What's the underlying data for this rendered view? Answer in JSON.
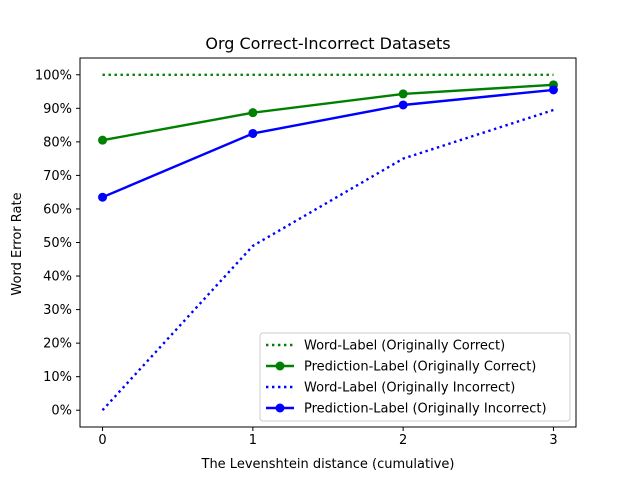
{
  "chart_data": {
    "type": "line",
    "title": "Org Correct-Incorrect Datasets",
    "xlabel": "The Levenshtein distance (cumulative)",
    "ylabel": "Word Error Rate",
    "x": [
      0,
      1,
      2,
      3
    ],
    "x_tick_labels": [
      "0",
      "1",
      "2",
      "3"
    ],
    "xlim": [
      -0.15,
      3.15
    ],
    "ylim": [
      -0.05,
      1.05
    ],
    "y_ticks": [
      0,
      0.1,
      0.2,
      0.3,
      0.4,
      0.5,
      0.6,
      0.7,
      0.8,
      0.9,
      1.0
    ],
    "y_tick_labels": [
      "0%",
      "10%",
      "20%",
      "30%",
      "40%",
      "50%",
      "60%",
      "70%",
      "80%",
      "90%",
      "100%"
    ],
    "grid": false,
    "legend_position": "lower-right",
    "series": [
      {
        "name": "Word-Label (Originally Correct)",
        "values": [
          1.0,
          1.0,
          1.0,
          1.0
        ],
        "color": "#008000",
        "style": "dotted",
        "marker": "none"
      },
      {
        "name": "Prediction-Label (Originally Correct)",
        "values": [
          0.805,
          0.887,
          0.943,
          0.97
        ],
        "color": "#008000",
        "style": "solid",
        "marker": "circle"
      },
      {
        "name": "Word-Label (Originally Incorrect)",
        "values": [
          0.0,
          0.49,
          0.75,
          0.895
        ],
        "color": "#0000ff",
        "style": "dotted",
        "marker": "none"
      },
      {
        "name": "Prediction-Label (Originally Incorrect)",
        "values": [
          0.635,
          0.825,
          0.91,
          0.955
        ],
        "color": "#0000ff",
        "style": "solid",
        "marker": "circle"
      }
    ]
  }
}
